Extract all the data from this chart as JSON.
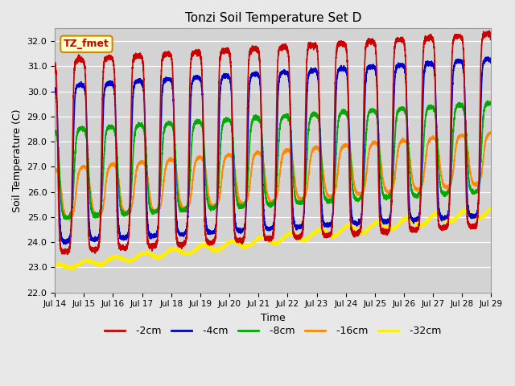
{
  "title": "Tonzi Soil Temperature Set D",
  "xlabel": "Time",
  "ylabel": "Soil Temperature (C)",
  "ylim": [
    22.0,
    32.5
  ],
  "xlim": [
    0,
    360
  ],
  "fig_bg_color": "#e8e8e8",
  "plot_bg_color": "#d3d3d3",
  "series": {
    "-2cm": {
      "color": "#cc0000",
      "lw": 1.2
    },
    "-4cm": {
      "color": "#0000cc",
      "lw": 1.2
    },
    "-8cm": {
      "color": "#00aa00",
      "lw": 1.2
    },
    "-16cm": {
      "color": "#ff8800",
      "lw": 1.2
    },
    "-32cm": {
      "color": "#ffee00",
      "lw": 1.5
    }
  },
  "annotation_text": "TZ_fmet",
  "annotation_color": "#cc0000",
  "annotation_bg": "#ffffcc",
  "annotation_border": "#cc8800",
  "xtick_labels": [
    "Jul 14",
    "Jul 15",
    "Jul 16",
    "Jul 17",
    "Jul 18",
    "Jul 19",
    "Jul 20",
    "Jul 21",
    "Jul 22",
    "Jul 23",
    "Jul 24",
    "Jul 25",
    "Jul 26",
    "Jul 27",
    "Jul 28",
    "Jul 29"
  ],
  "xtick_positions": [
    0,
    24,
    48,
    72,
    96,
    120,
    144,
    168,
    192,
    216,
    240,
    264,
    288,
    312,
    336,
    360
  ],
  "ytick_labels": [
    "22.0",
    "23.0",
    "24.0",
    "25.0",
    "26.0",
    "27.0",
    "28.0",
    "29.0",
    "30.0",
    "31.0",
    "32.0"
  ],
  "ytick_positions": [
    22.0,
    23.0,
    24.0,
    25.0,
    26.0,
    27.0,
    28.0,
    29.0,
    30.0,
    31.0,
    32.0
  ],
  "grid_color": "#bbbbbb",
  "figsize": [
    6.4,
    4.8
  ],
  "dpi": 100
}
